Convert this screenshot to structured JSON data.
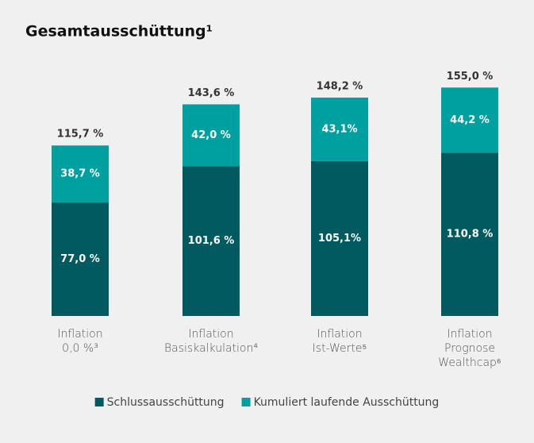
{
  "chart_data": {
    "type": "bar",
    "stacked": true,
    "title": "Gesamtausschüttung¹",
    "categories": [
      [
        "Inflation",
        "0,0 %³"
      ],
      [
        "Inflation",
        "Basiskalkulation⁴"
      ],
      [
        "Inflation",
        "Ist-Werte⁵"
      ],
      [
        "Inflation",
        "Prognose",
        "Wealthcap⁶"
      ]
    ],
    "series": [
      {
        "name": "Schlussausschüttung",
        "color": "#005a5f",
        "values": [
          77.0,
          101.6,
          105.1,
          110.8
        ],
        "value_labels": [
          "77,0 %",
          "101,6 %",
          "105,1%",
          "110,8 %"
        ]
      },
      {
        "name": "Kumuliert laufende Ausschüttung",
        "color": "#00a0a0",
        "values": [
          38.7,
          42.0,
          43.1,
          44.2
        ],
        "value_labels": [
          "38,7 %",
          "42,0 %",
          "43,1%",
          "44,2 %"
        ]
      }
    ],
    "totals": [
      115.7,
      143.6,
      148.2,
      155.0
    ],
    "total_labels": [
      "115,7 %",
      "143,6 %",
      "148,2 %",
      "155,0 %"
    ],
    "ylim": [
      0,
      160
    ],
    "legend": "bottom"
  }
}
